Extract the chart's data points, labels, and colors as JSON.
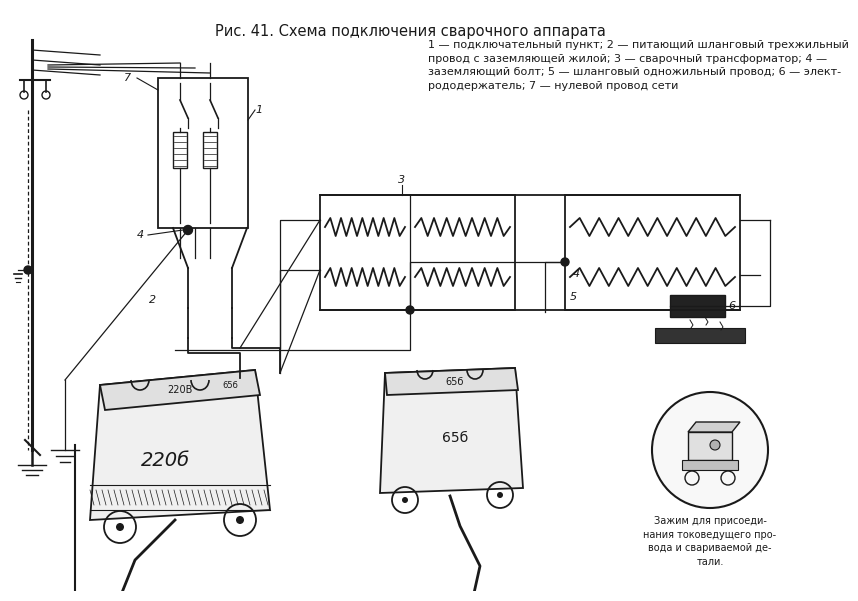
{
  "title": "Рис. 41. Схема подключения сварочного аппарата",
  "title_fontsize": 10.5,
  "legend_text": "1 — подключательный пункт; 2 — питающий шланговый трехжильный\nпровод с заземляющей жилой; 3 — сварочный трансформатор; 4 —\nзаземляющий болт; 5 — шланговый одножильный провод; 6 — элект-\nрододержатель; 7 — нулевой провод сети",
  "legend_fontsize": 8.0,
  "bg_color": "#ffffff",
  "text_color": "#1a1a1a",
  "lw_main": 1.3,
  "lw_thin": 0.9,
  "fig_width": 8.0,
  "fig_height": 5.81
}
